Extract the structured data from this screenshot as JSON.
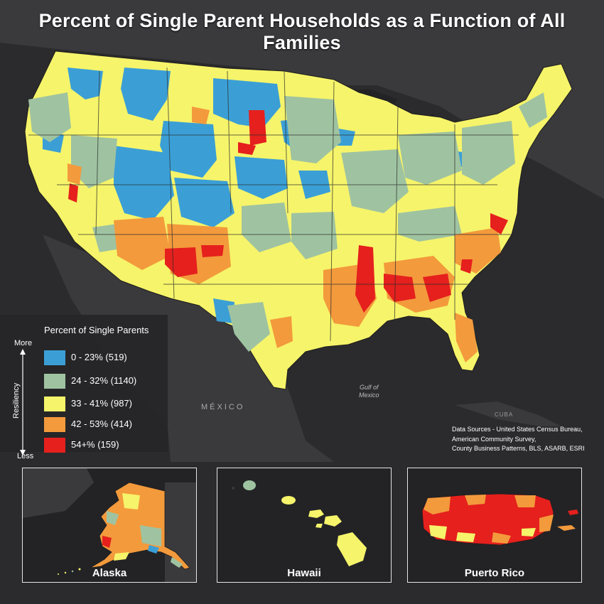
{
  "title": "Percent of Single Parent Households as a Function of All Families",
  "legend": {
    "title": "Percent of Single Parents",
    "items": [
      {
        "label": "0 - 23% (519)",
        "color": "#3b9fd6"
      },
      {
        "label": "24 - 32% (1140)",
        "color": "#9fc3a1"
      },
      {
        "label": "33 - 41% (987)",
        "color": "#f6f46a"
      },
      {
        "label": "42 - 53% (414)",
        "color": "#f39a3c"
      },
      {
        "label": "54+% (159)",
        "color": "#e5201d"
      }
    ],
    "axis": {
      "more": "More",
      "less": "Less",
      "label": "Resiliency"
    }
  },
  "sources": [
    "Data Sources - United States Census Bureau,",
    "American Community Survey,",
    "County Business Patterns, BLS, ASARB, ESRI"
  ],
  "map_labels": {
    "gulf": [
      "Gulf of",
      "Mexico"
    ],
    "mexico": "MÉXICO",
    "cuba": "CUBA"
  },
  "insets": [
    {
      "label": "Alaska"
    },
    {
      "label": "Hawaii"
    },
    {
      "label": "Puerto Rico"
    }
  ],
  "colors": {
    "background": "#2b2b2d",
    "land_dark": "#3d3d40",
    "water": "#232326",
    "border": "#222222"
  }
}
